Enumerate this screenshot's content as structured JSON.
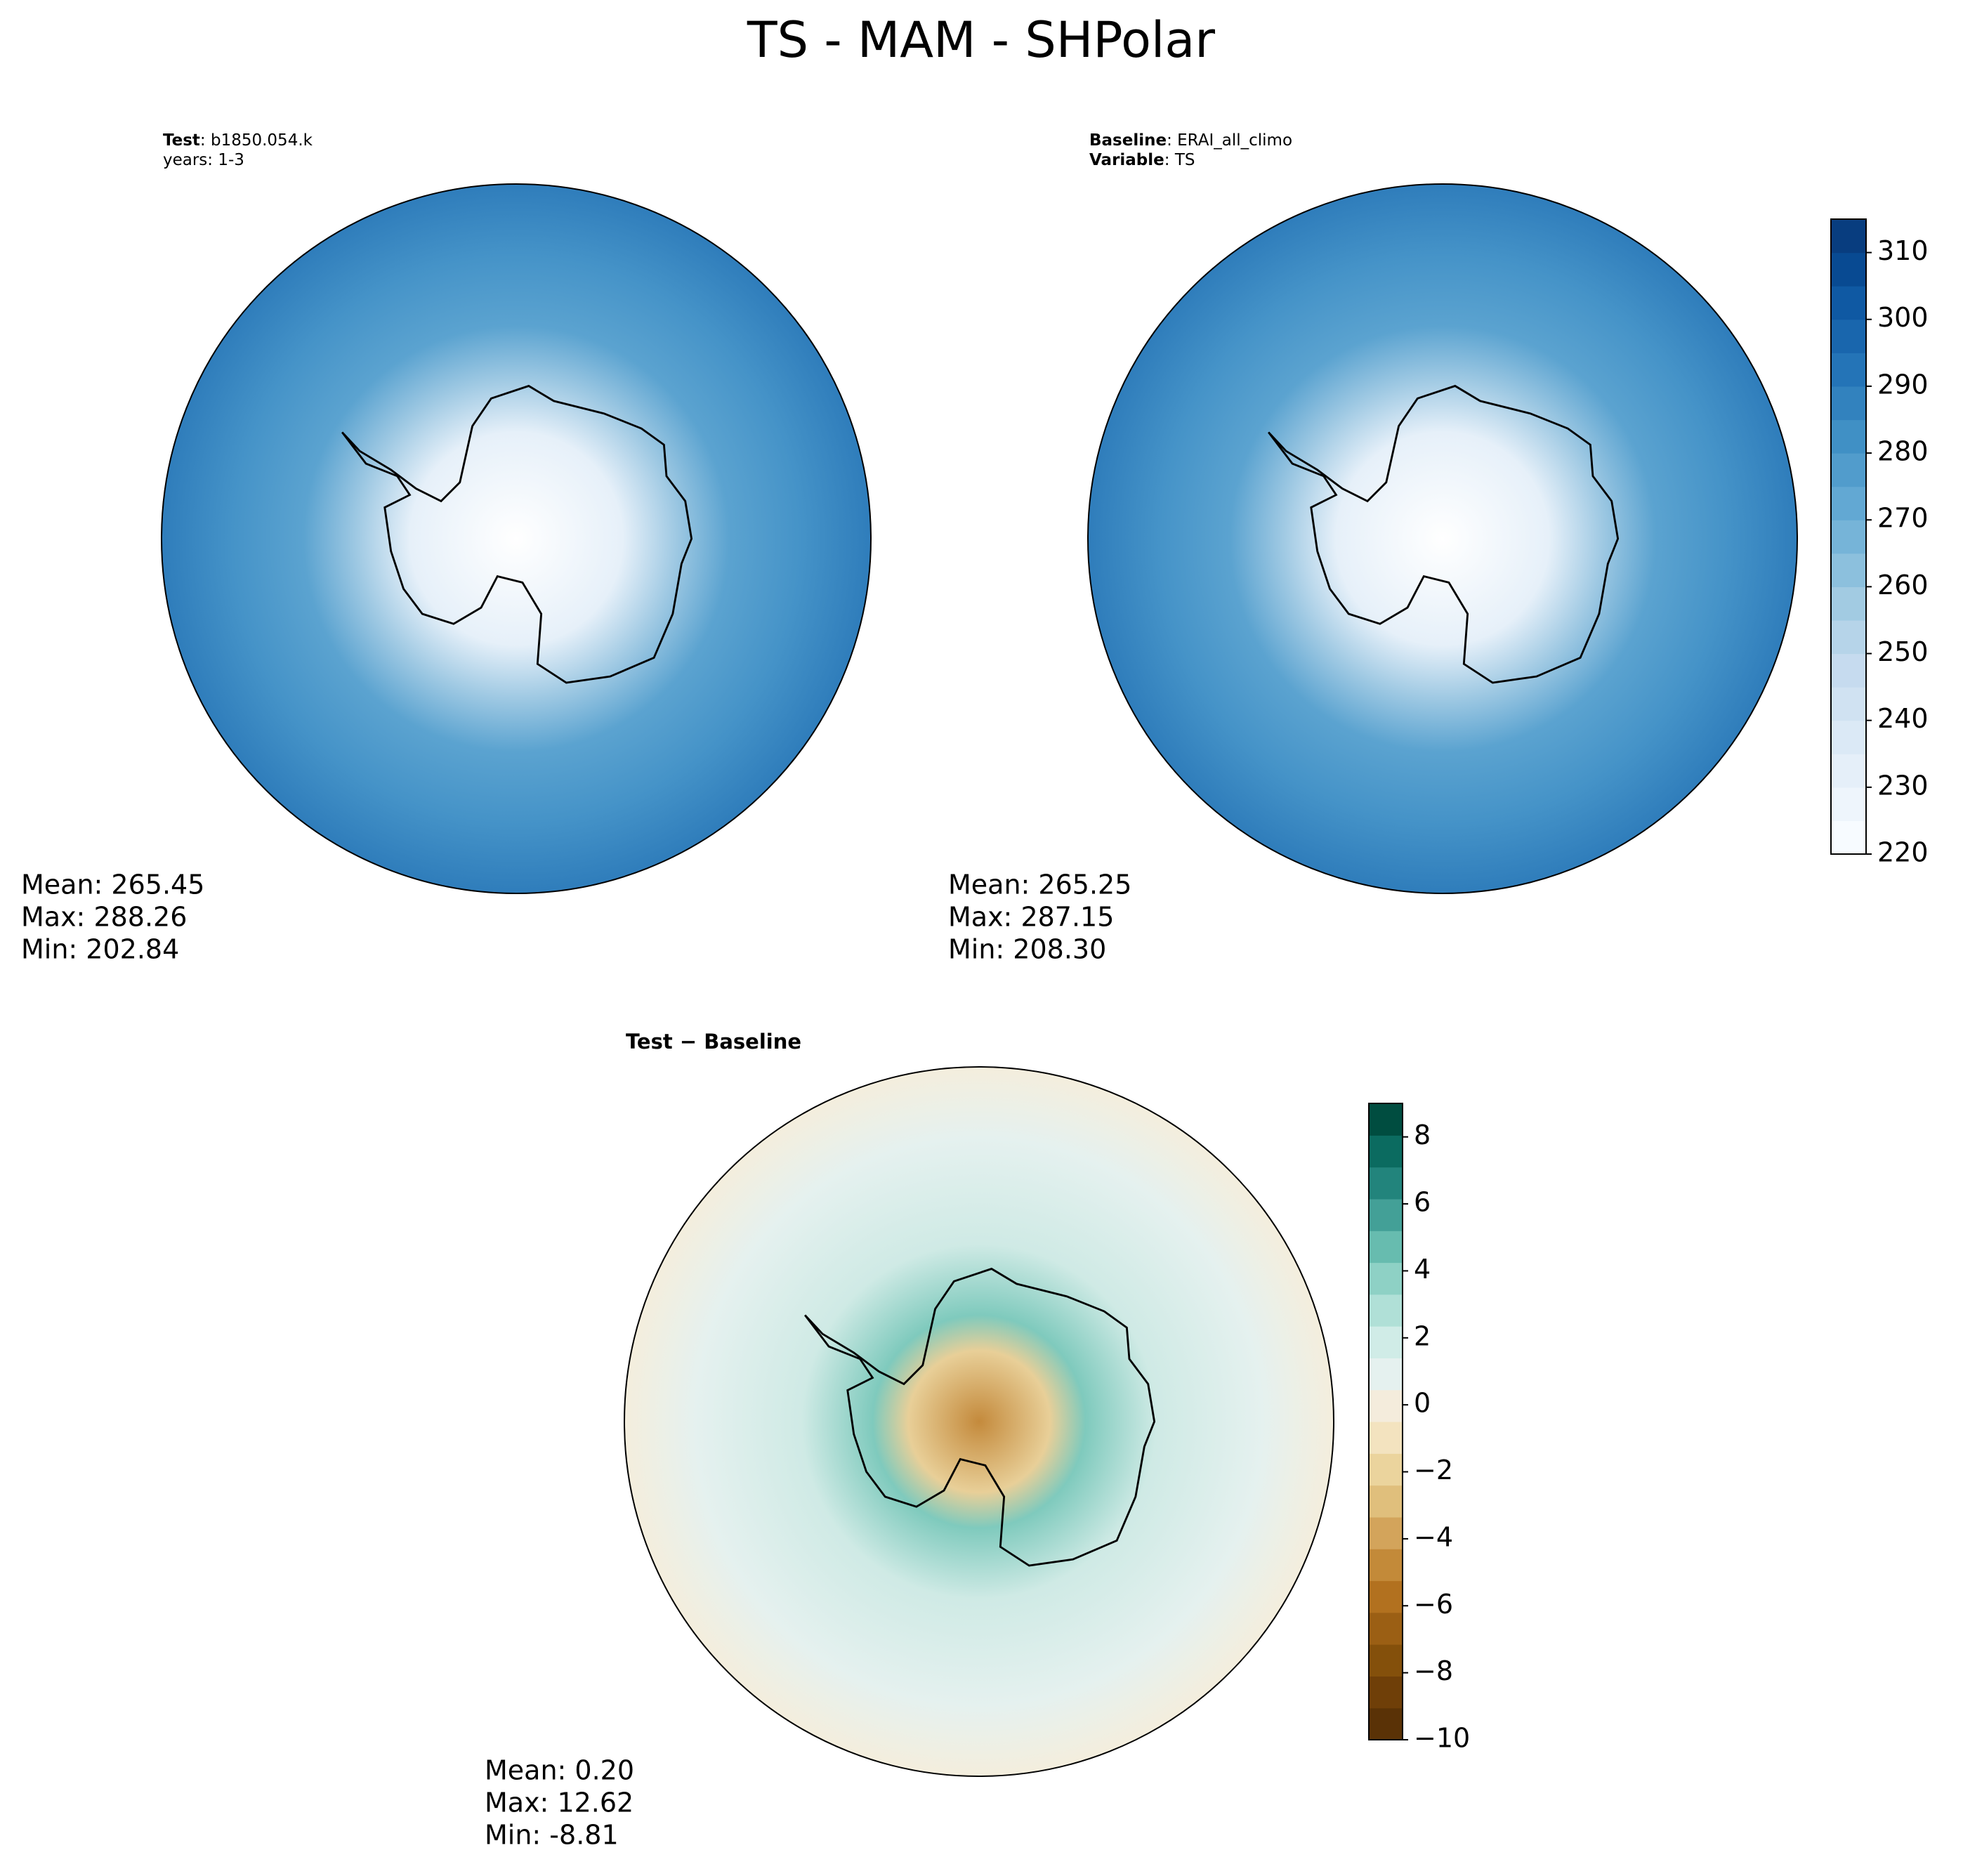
{
  "title": "TS - MAM - SHPolar",
  "chart_data": [
    {
      "type": "contour-map",
      "header": [
        {
          "key": "Test",
          "text": ": b1850.054.k"
        },
        {
          "text": "years: 1-3"
        }
      ],
      "stats": [
        "Mean: 265.45",
        "Max: 288.26",
        "Min: 202.84"
      ]
    },
    {
      "type": "contour-map",
      "header": [
        {
          "key": "Baseline",
          "text": ": ERAI_all_climo"
        },
        {
          "key": "Variable",
          "text": ": TS"
        }
      ],
      "stats": [
        "Mean: 265.25",
        "Max: 287.15",
        "Min: 208.30"
      ],
      "colorbar": {
        "ylim": [
          220,
          315
        ],
        "yticks": [
          220,
          230,
          240,
          250,
          260,
          270,
          280,
          290,
          300,
          310
        ],
        "colors": [
          "#f7fbff",
          "#eef5fc",
          "#e5eff9",
          "#dbe9f6",
          "#d0e2f2",
          "#c6dbef",
          "#b6d4e9",
          "#a2cbe2",
          "#8cc0dd",
          "#76b4d8",
          "#62a8d3",
          "#519ccc",
          "#4090c5",
          "#3282be",
          "#2474b7",
          "#1966ad",
          "#0f59a3",
          "#084a92",
          "#083d7f"
        ]
      }
    },
    {
      "type": "contour-map",
      "subtitle": "Test − Baseline",
      "stats": [
        "Mean:  0.20",
        "Max: 12.62",
        "Min: -8.81"
      ],
      "colorbar": {
        "ylim": [
          -10,
          9
        ],
        "yticks": [
          {
            "value": -10,
            "label": "−10"
          },
          {
            "value": -8,
            "label": "−8"
          },
          {
            "value": -6,
            "label": "−6"
          },
          {
            "value": -4,
            "label": "−4"
          },
          {
            "value": -2,
            "label": "−2"
          },
          0,
          2,
          4,
          6,
          8
        ],
        "colors": [
          "#5a3206",
          "#6f3f08",
          "#84500b",
          "#9b5f14",
          "#b2711f",
          "#c38a39",
          "#d3a45b",
          "#e0bf7c",
          "#ebd49d",
          "#f3e3bf",
          "#f4ecdc",
          "#e5f1ef",
          "#d0ece7",
          "#b0e0d7",
          "#8ed1c5",
          "#67bcaf",
          "#43a097",
          "#22847c",
          "#0b6b60",
          "#004d40"
        ]
      }
    }
  ]
}
